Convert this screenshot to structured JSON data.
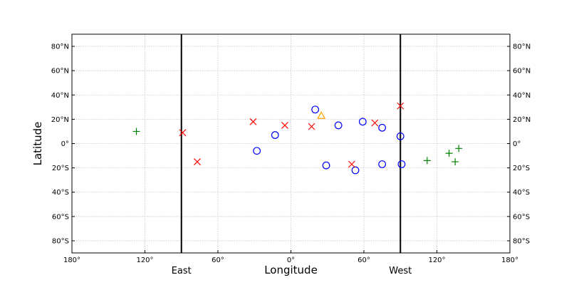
{
  "chart_data": {
    "type": "scatter",
    "title": "",
    "xlabel": "Longitude",
    "ylabel": "Latitude",
    "xlim": [
      -180,
      180
    ],
    "ylim": [
      -90,
      90
    ],
    "grid": true,
    "x_ticks": [
      {
        "value": -180,
        "label": "180°"
      },
      {
        "value": -120,
        "label": "120°"
      },
      {
        "value": -60,
        "label": "60°"
      },
      {
        "value": 0,
        "label": "0°"
      },
      {
        "value": 60,
        "label": "60°"
      },
      {
        "value": 120,
        "label": "120°"
      },
      {
        "value": 180,
        "label": "180°"
      }
    ],
    "y_ticks": [
      {
        "value": 80,
        "label": "80°N"
      },
      {
        "value": 60,
        "label": "60°N"
      },
      {
        "value": 40,
        "label": "40°N"
      },
      {
        "value": 20,
        "label": "20°N"
      },
      {
        "value": 0,
        "label": "0°"
      },
      {
        "value": -20,
        "label": "20°S"
      },
      {
        "value": -40,
        "label": "40°S"
      },
      {
        "value": -60,
        "label": "60°S"
      },
      {
        "value": -80,
        "label": "80°S"
      }
    ],
    "vertical_lines": [
      {
        "x": -90,
        "label": "East"
      },
      {
        "x": 90,
        "label": "West"
      }
    ],
    "series": [
      {
        "marker": "circle",
        "color": "#0000ff",
        "points": [
          [
            20,
            28
          ],
          [
            39,
            15
          ],
          [
            59,
            18
          ],
          [
            75,
            13
          ],
          [
            90,
            6
          ],
          [
            -13,
            7
          ],
          [
            -28,
            -6
          ],
          [
            29,
            -18
          ],
          [
            53,
            -22
          ],
          [
            75,
            -17
          ],
          [
            91,
            -17
          ]
        ]
      },
      {
        "marker": "x",
        "color": "#ff0000",
        "points": [
          [
            -89,
            9
          ],
          [
            -77,
            -15
          ],
          [
            -31,
            18
          ],
          [
            -5,
            15
          ],
          [
            17,
            14
          ],
          [
            69,
            17
          ],
          [
            90,
            31
          ],
          [
            50,
            -17
          ]
        ]
      },
      {
        "marker": "plus",
        "color": "#008000",
        "points": [
          [
            -127,
            10
          ],
          [
            112,
            -14
          ],
          [
            130,
            -8
          ],
          [
            138,
            -4
          ],
          [
            135,
            -15
          ]
        ]
      },
      {
        "marker": "triangle",
        "color": "#ffa500",
        "points": [
          [
            25,
            23
          ]
        ]
      }
    ]
  }
}
